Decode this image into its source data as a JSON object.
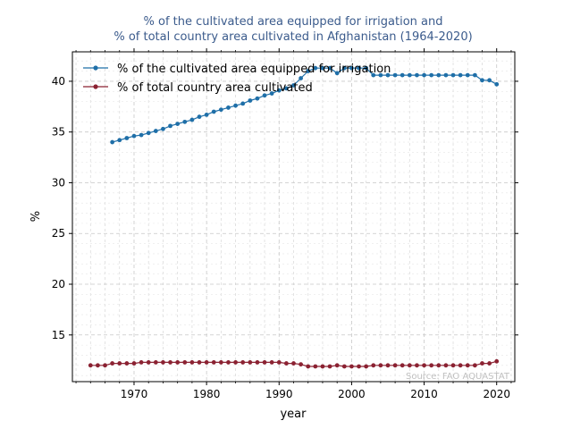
{
  "chart_data": {
    "type": "line",
    "title_lines": [
      "% of the cultivated area equipped for irrigation and",
      "% of total country area cultivated in Afghanistan (1964-2020)"
    ],
    "xlabel": "year",
    "ylabel": "%",
    "xlim": [
      1961.5,
      2022.5
    ],
    "ylim": [
      10.4,
      42.9
    ],
    "xticks": [
      1970,
      1980,
      1990,
      2000,
      2010,
      2020
    ],
    "yticks": [
      15,
      20,
      25,
      30,
      35,
      40
    ],
    "grid": true,
    "legend_position": "top-left",
    "source": "Source: FAO AQUASTAT",
    "colors": {
      "irrigation": "#1f6fa8",
      "cultivated": "#8b2232"
    },
    "series": [
      {
        "key": "irrigation",
        "name": "% of the cultivated area equipped for irrigation",
        "x": [
          1967,
          1968,
          1969,
          1970,
          1971,
          1972,
          1973,
          1974,
          1975,
          1976,
          1977,
          1978,
          1979,
          1980,
          1981,
          1982,
          1983,
          1984,
          1985,
          1986,
          1987,
          1988,
          1989,
          1990,
          1991,
          1992,
          1993,
          1994,
          1995,
          1996,
          1997,
          1998,
          1999,
          2000,
          2001,
          2002,
          2003,
          2004,
          2005,
          2006,
          2007,
          2008,
          2009,
          2010,
          2011,
          2012,
          2013,
          2014,
          2015,
          2016,
          2017,
          2018,
          2019,
          2020
        ],
        "y": [
          34.0,
          34.2,
          34.4,
          34.6,
          34.7,
          34.9,
          35.1,
          35.3,
          35.6,
          35.8,
          36.0,
          36.2,
          36.5,
          36.7,
          37.0,
          37.2,
          37.4,
          37.6,
          37.8,
          38.1,
          38.3,
          38.6,
          38.8,
          39.1,
          39.3,
          39.6,
          40.3,
          41.0,
          41.3,
          41.3,
          41.3,
          40.8,
          41.3,
          41.3,
          41.3,
          41.3,
          40.6,
          40.6,
          40.6,
          40.6,
          40.6,
          40.6,
          40.6,
          40.6,
          40.6,
          40.6,
          40.6,
          40.6,
          40.6,
          40.6,
          40.6,
          40.1,
          40.1,
          39.7
        ]
      },
      {
        "key": "cultivated",
        "name": "% of total country area cultivated",
        "x": [
          1964,
          1965,
          1966,
          1967,
          1968,
          1969,
          1970,
          1971,
          1972,
          1973,
          1974,
          1975,
          1976,
          1977,
          1978,
          1979,
          1980,
          1981,
          1982,
          1983,
          1984,
          1985,
          1986,
          1987,
          1988,
          1989,
          1990,
          1991,
          1992,
          1993,
          1994,
          1995,
          1996,
          1997,
          1998,
          1999,
          2000,
          2001,
          2002,
          2003,
          2004,
          2005,
          2006,
          2007,
          2008,
          2009,
          2010,
          2011,
          2012,
          2013,
          2014,
          2015,
          2016,
          2017,
          2018,
          2019,
          2020
        ],
        "y": [
          12.0,
          12.0,
          12.0,
          12.2,
          12.2,
          12.2,
          12.2,
          12.3,
          12.3,
          12.3,
          12.3,
          12.3,
          12.3,
          12.3,
          12.3,
          12.3,
          12.3,
          12.3,
          12.3,
          12.3,
          12.3,
          12.3,
          12.3,
          12.3,
          12.3,
          12.3,
          12.3,
          12.2,
          12.2,
          12.1,
          11.9,
          11.9,
          11.9,
          11.9,
          12.0,
          11.9,
          11.9,
          11.9,
          11.9,
          12.0,
          12.0,
          12.0,
          12.0,
          12.0,
          12.0,
          12.0,
          12.0,
          12.0,
          12.0,
          12.0,
          12.0,
          12.0,
          12.0,
          12.0,
          12.2,
          12.2,
          12.4
        ]
      }
    ]
  }
}
